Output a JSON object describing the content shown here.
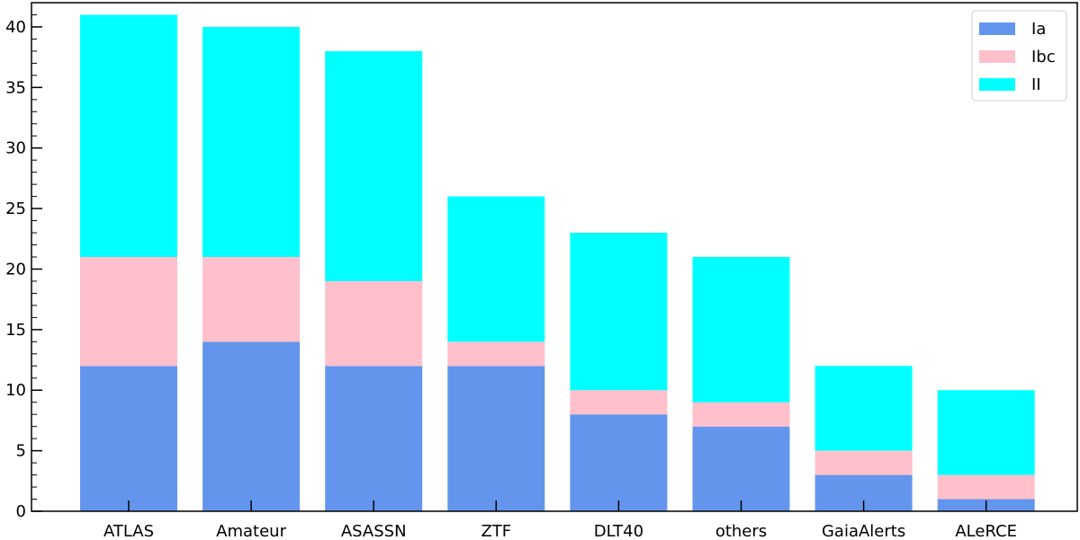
{
  "chart_data": {
    "type": "bar",
    "stacked": true,
    "title": "",
    "xlabel": "",
    "ylabel": "",
    "categories": [
      "ATLAS",
      "Amateur",
      "ASASSN",
      "ZTF",
      "DLT40",
      "others",
      "GaiaAlerts",
      "ALeRCE"
    ],
    "series": [
      {
        "name": "Ia",
        "color": "#6495ED",
        "values": [
          12,
          14,
          12,
          12,
          8,
          7,
          3,
          1
        ]
      },
      {
        "name": "Ibc",
        "color": "#FFC0CB",
        "values": [
          9,
          7,
          7,
          2,
          2,
          2,
          2,
          2
        ]
      },
      {
        "name": "II",
        "color": "#00FFFF",
        "values": [
          20,
          19,
          19,
          12,
          13,
          12,
          7,
          7
        ]
      }
    ],
    "ylim": [
      0,
      42
    ],
    "yticks": [
      "0",
      "5",
      "10",
      "15",
      "20",
      "25",
      "30",
      "35",
      "40"
    ],
    "ytick_values": [
      0,
      5,
      10,
      15,
      20,
      25,
      30,
      35,
      40
    ],
    "yminor_step": 1,
    "grid": false,
    "legend_position": "top-right"
  }
}
